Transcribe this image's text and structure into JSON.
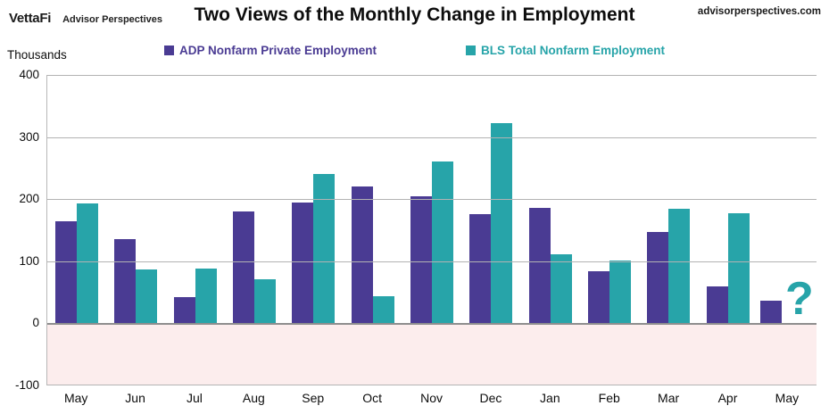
{
  "header": {
    "logo_primary": "VettaFi",
    "logo_secondary": "Advisor Perspectives",
    "title": "Two Views of the Monthly Change in Employment",
    "website": "advisorperspectives.com"
  },
  "axis": {
    "unit_label": "Thousands",
    "y_ticks": [
      "400",
      "300",
      "200",
      "100",
      "0",
      "-100"
    ]
  },
  "colors": {
    "adp_purple": "#4a3b93",
    "bls_teal": "#27a4a9",
    "negative_region_pink": "#fceded",
    "gridline_gray": "#b3b3b3",
    "zero_line_gray": "#8e8e8e"
  },
  "chart_data": {
    "type": "bar",
    "title": "Two Views of the Monthly Change in Employment",
    "xlabel": "",
    "ylabel": "Thousands",
    "ylim": [
      -100,
      400
    ],
    "grid": true,
    "legend_position": "top",
    "categories": [
      "May",
      "Jun",
      "Jul",
      "Aug",
      "Sep",
      "Oct",
      "Nov",
      "Dec",
      "Jan",
      "Feb",
      "Mar",
      "Apr",
      "May"
    ],
    "series": [
      {
        "name": "ADP Nonfarm Private Employment",
        "color": "#4a3b93",
        "values": [
          164,
          136,
          42,
          180,
          195,
          220,
          204,
          176,
          186,
          84,
          147,
          60,
          37
        ]
      },
      {
        "name": "BLS Total Nonfarm Employment",
        "color": "#27a4a9",
        "values": [
          193,
          87,
          88,
          71,
          240,
          44,
          261,
          323,
          111,
          101,
          185,
          177,
          null
        ]
      }
    ],
    "missing_value_marker": "?",
    "annotations": [
      "Final BLS value not yet reported, shown as question mark"
    ]
  }
}
